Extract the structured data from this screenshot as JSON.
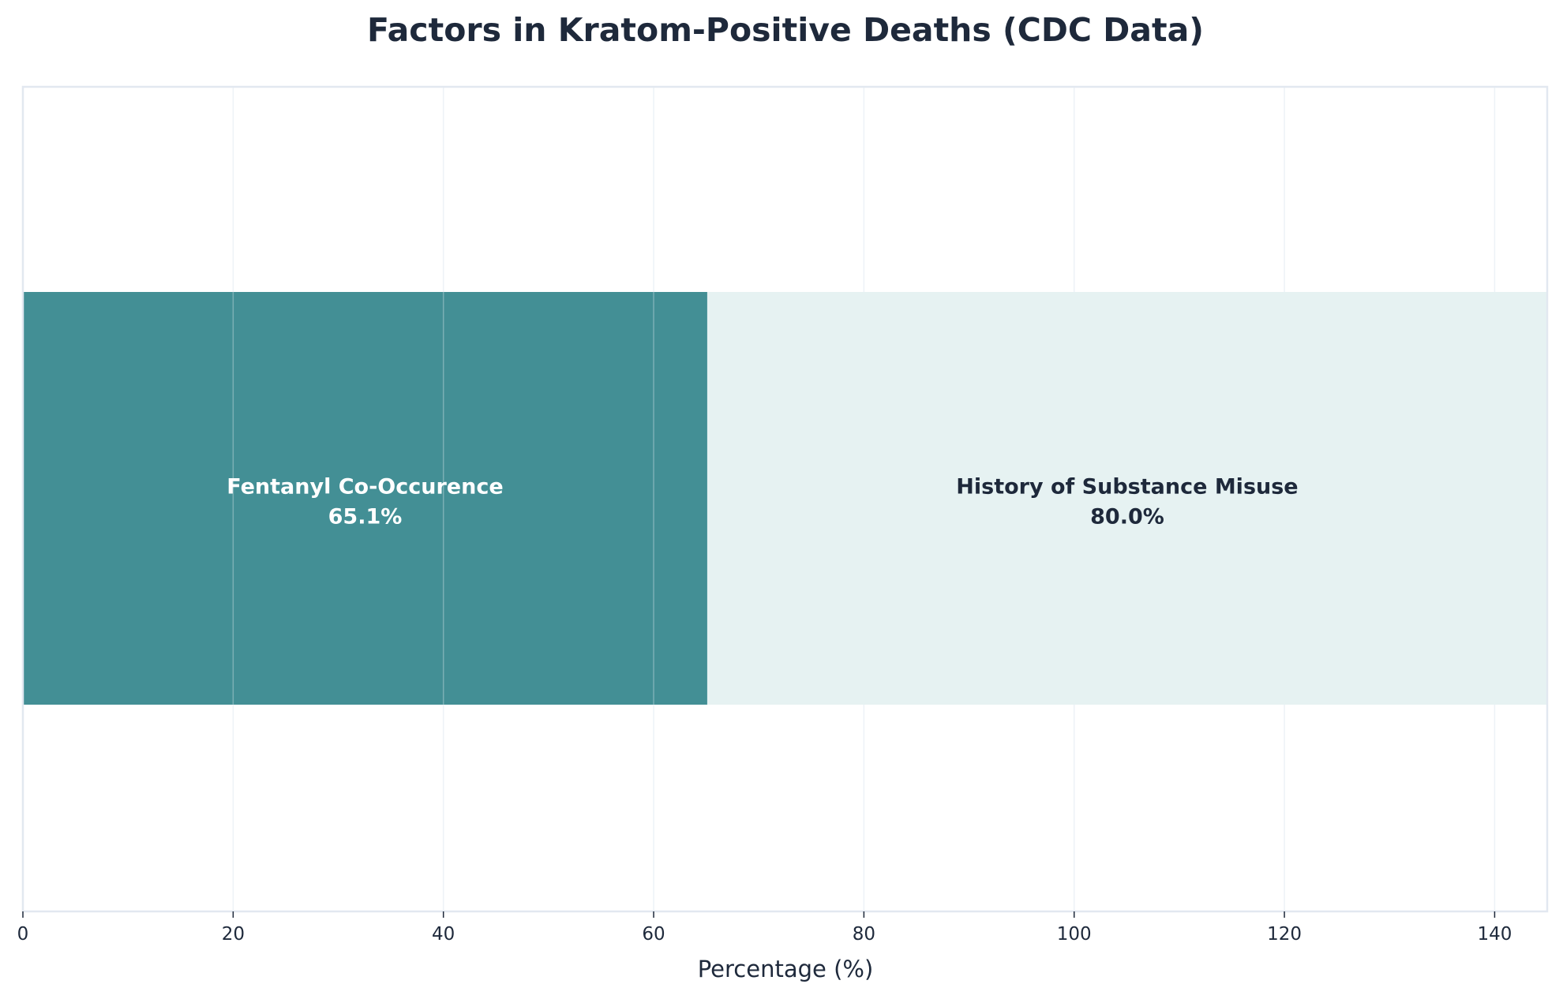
{
  "chart_data": {
    "type": "bar",
    "orientation": "horizontal-stacked",
    "title": "Factors in Kratom-Positive Deaths (CDC Data)",
    "xlabel": "Percentage (%)",
    "ylabel": "",
    "xlim": [
      0,
      145
    ],
    "xticks": [
      0,
      20,
      40,
      60,
      80,
      100,
      120,
      140
    ],
    "grid": true,
    "segments": [
      {
        "name": "Fentanyl Co-Occurence",
        "value": 65.1,
        "label": "65.1%",
        "color": "#438f95",
        "text_color": "#ffffff"
      },
      {
        "name": "History of Substance Misuse",
        "value": 80.0,
        "label": "80.0%",
        "color": "#e6f2f2",
        "text_color": "#1e293b"
      }
    ],
    "colors": {
      "text": "#1e293b",
      "frame": "#e2e8f0",
      "grid": "#edf2f7"
    }
  }
}
